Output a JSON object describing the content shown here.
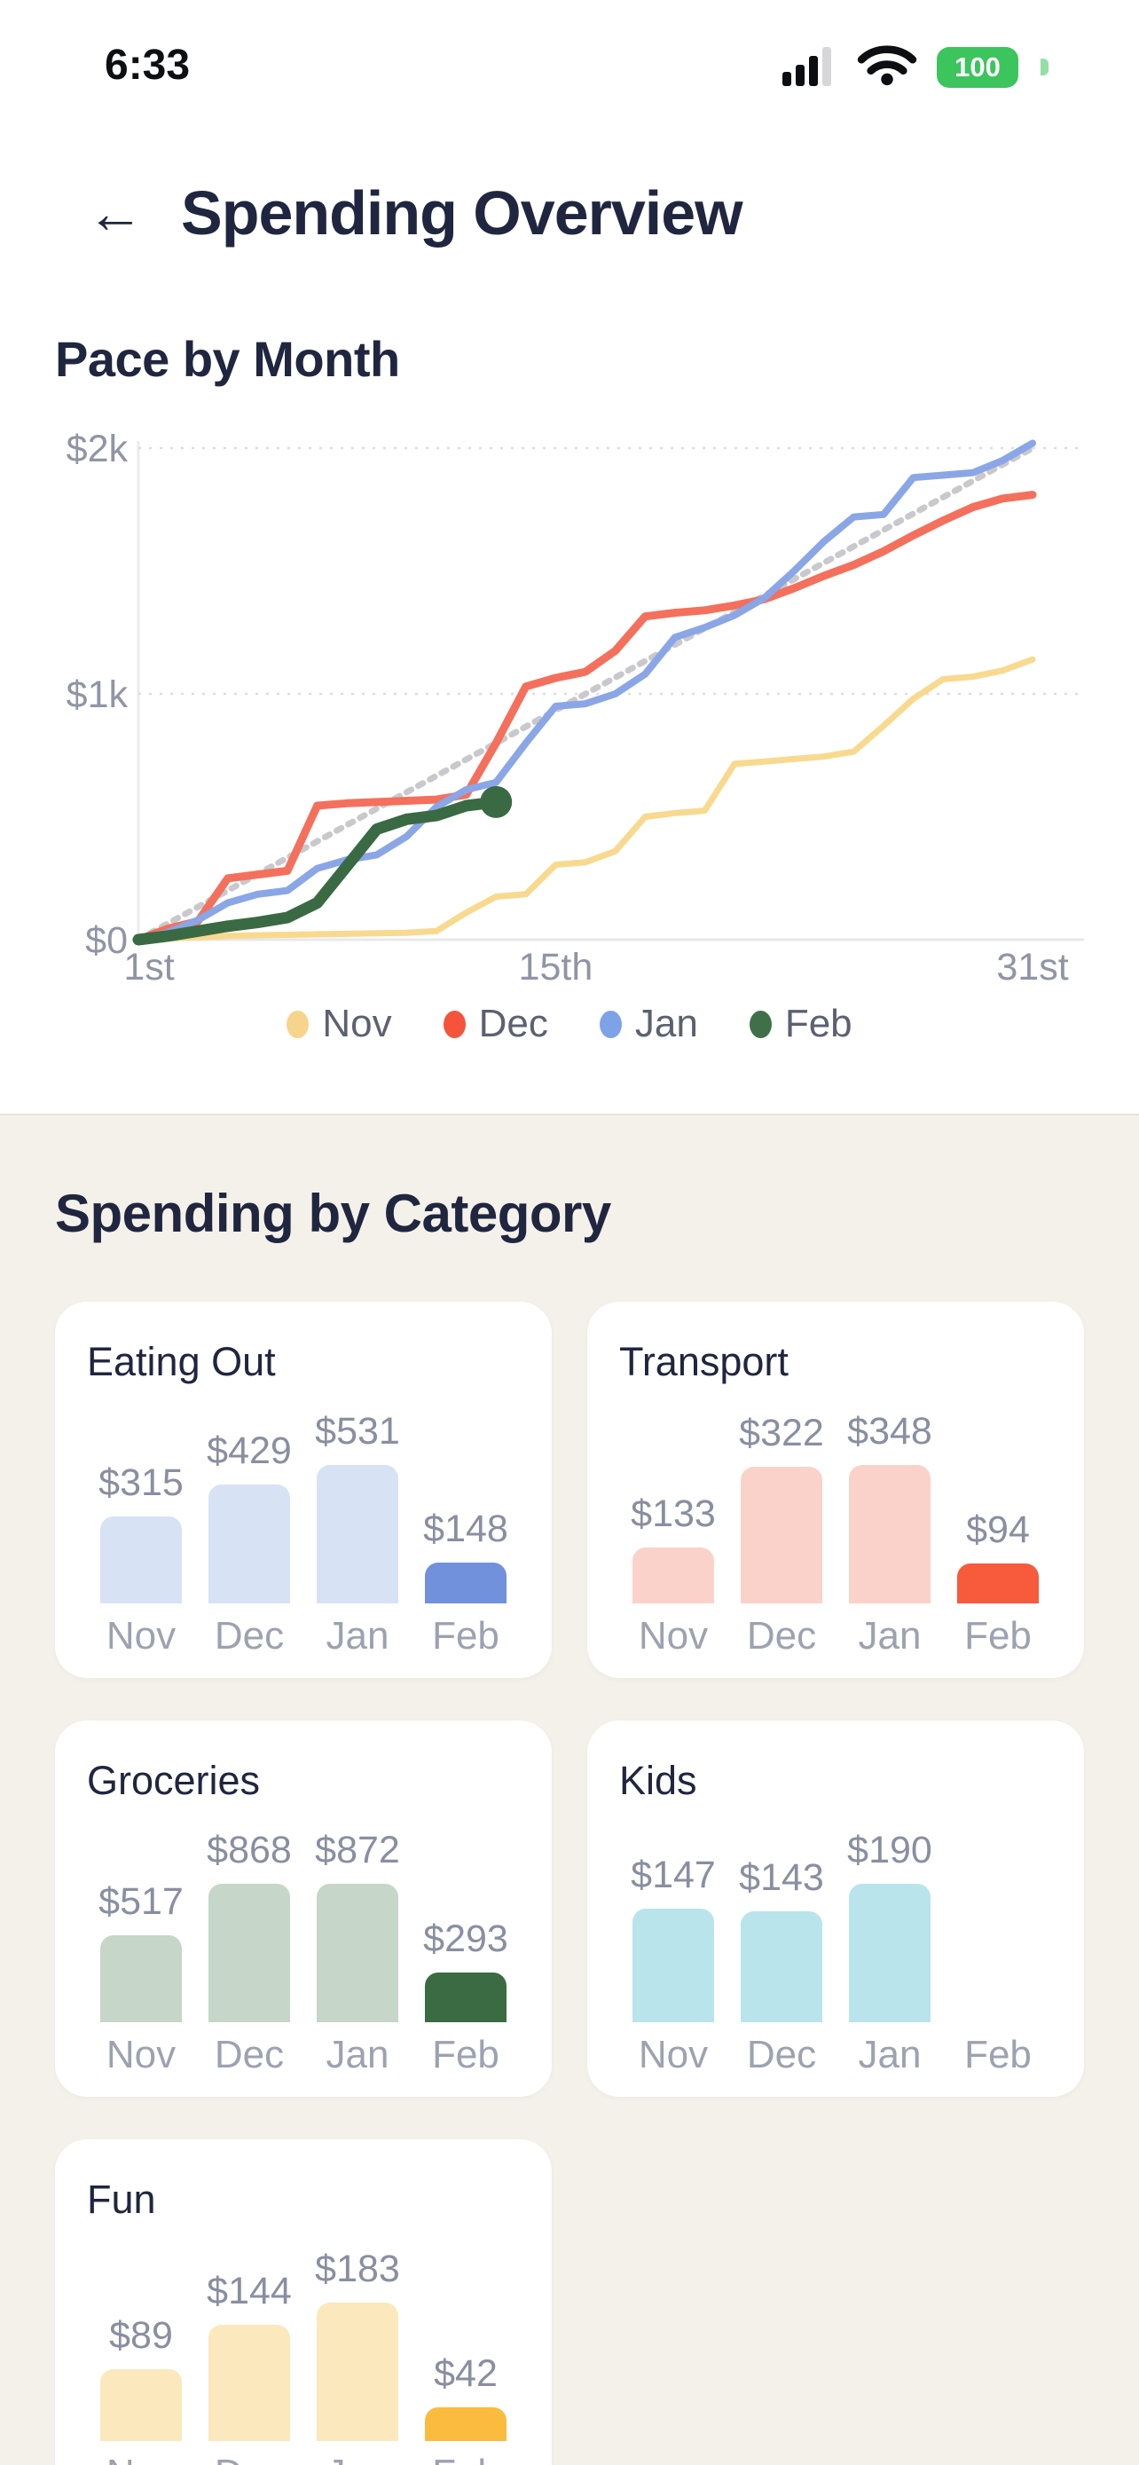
{
  "status_bar": {
    "time": "6:33",
    "battery": "100"
  },
  "header": {
    "title": "Spending Overview",
    "back_icon": "left-arrow"
  },
  "sections": {
    "pace_title": "Pace by Month",
    "category_title": "Spending by Category"
  },
  "colors": {
    "heading_text": "#20263f",
    "axis_text": "#9095a5",
    "legend_text": "#5c6170",
    "section_bg": "#f4f1ea",
    "card_bg": "#ffffff",
    "battery_green": "#3cc45d"
  },
  "chart_data": [
    {
      "type": "line",
      "title": "Pace by Month",
      "x_axis": {
        "range": [
          1,
          31
        ],
        "ticks": [
          {
            "day": 1,
            "label": "1st"
          },
          {
            "day": 15,
            "label": "15th"
          },
          {
            "day": 31,
            "label": "31st"
          }
        ]
      },
      "y_axis": {
        "range": [
          0,
          2000
        ],
        "ticks": [
          {
            "value": 0,
            "label": "$0"
          },
          {
            "value": 1000,
            "label": "$1k"
          },
          {
            "value": 2000,
            "label": "$2k"
          }
        ]
      },
      "grid": {
        "horizontal_dotted": [
          1000,
          2000
        ]
      },
      "legend_position": "bottom-center",
      "legend": [
        {
          "label": "Nov",
          "color": "#f7d48b"
        },
        {
          "label": "Dec",
          "color": "#f5533c"
        },
        {
          "label": "Jan",
          "color": "#7ea2e8"
        },
        {
          "label": "Feb",
          "color": "#40704a"
        }
      ],
      "series": [
        {
          "name": "pace-target",
          "color": "#c9c9cd",
          "width": 7,
          "dashed": true,
          "days": [
            1,
            31
          ],
          "values": [
            0,
            2000
          ]
        },
        {
          "name": "Nov",
          "color": "#f8d98e",
          "width": 7,
          "values": [
            0,
            5,
            10,
            15,
            18,
            20,
            22,
            24,
            26,
            28,
            35,
            110,
            175,
            185,
            305,
            315,
            360,
            500,
            515,
            525,
            715,
            725,
            735,
            745,
            765,
            870,
            980,
            1060,
            1070,
            1095,
            1140
          ]
        },
        {
          "name": "Dec",
          "color": "#f4705c",
          "width": 9,
          "values": [
            0,
            45,
            75,
            250,
            265,
            280,
            545,
            555,
            560,
            565,
            570,
            590,
            800,
            1030,
            1065,
            1090,
            1175,
            1315,
            1330,
            1340,
            1360,
            1385,
            1430,
            1480,
            1525,
            1580,
            1645,
            1705,
            1760,
            1795,
            1810
          ]
        },
        {
          "name": "Jan",
          "color": "#8aa6e6",
          "width": 8,
          "values": [
            0,
            30,
            80,
            150,
            185,
            200,
            290,
            325,
            345,
            420,
            540,
            610,
            640,
            800,
            950,
            960,
            1000,
            1080,
            1230,
            1270,
            1320,
            1390,
            1500,
            1620,
            1720,
            1730,
            1880,
            1890,
            1900,
            1950,
            2020
          ]
        },
        {
          "name": "Feb",
          "color": "#3a6a43",
          "width": 13,
          "end_dot": true,
          "end_dot_radius": 18,
          "values": [
            0,
            15,
            35,
            55,
            70,
            90,
            150,
            300,
            450,
            490,
            505,
            545,
            560
          ]
        }
      ]
    },
    {
      "type": "bar",
      "title": "Spending by Category",
      "categories": [
        "Nov",
        "Dec",
        "Jan",
        "Feb"
      ],
      "highlight_category": "Feb",
      "cards": [
        {
          "title": "Eating Out",
          "values": [
            315,
            429,
            531,
            148
          ],
          "value_labels": [
            "$315",
            "$429",
            "$531",
            "$148"
          ],
          "base_color": "#d8e2f5",
          "accent_color": "#7191dc"
        },
        {
          "title": "Transport",
          "values": [
            133,
            322,
            348,
            94
          ],
          "value_labels": [
            "$133",
            "$322",
            "$348",
            "$94"
          ],
          "base_color": "#fbd2c9",
          "accent_color": "#f85a3c"
        },
        {
          "title": "Groceries",
          "values": [
            517,
            868,
            872,
            293
          ],
          "value_labels": [
            "$517",
            "$868",
            "$872",
            "$293"
          ],
          "base_color": "#c6d6c8",
          "accent_color": "#3a6b42"
        },
        {
          "title": "Kids",
          "values": [
            147,
            143,
            190,
            null
          ],
          "value_labels": [
            "$147",
            "$143",
            "$190",
            null
          ],
          "base_color": "#b9e4eb",
          "accent_color": "#b9e4eb"
        },
        {
          "title": "Fun",
          "values": [
            89,
            144,
            183,
            42
          ],
          "value_labels": [
            "$89",
            "$144",
            "$183",
            "$42"
          ],
          "base_color": "#fbe8bd",
          "accent_color": "#fbbb3e"
        }
      ]
    }
  ]
}
